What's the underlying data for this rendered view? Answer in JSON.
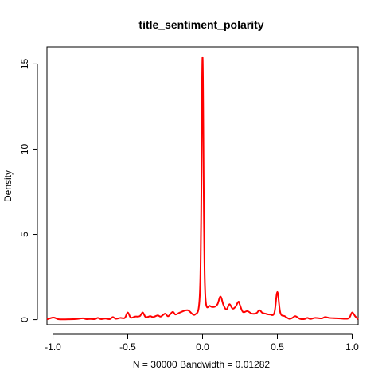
{
  "chart_data": {
    "type": "line",
    "title": "title_sentiment_polarity",
    "xlabel": "N = 30000   Bandwidth = 0.01282",
    "ylabel": "Density",
    "xlim": [
      -1.04,
      1.04
    ],
    "ylim": [
      -0.3,
      16.0
    ],
    "x_ticks": [
      -1.0,
      -0.5,
      0.0,
      0.5,
      1.0
    ],
    "x_tick_labels": [
      "-1.0",
      "-0.5",
      "0.0",
      "0.5",
      "1.0"
    ],
    "y_ticks": [
      0,
      5,
      10,
      15
    ],
    "y_tick_labels": [
      "0",
      "5",
      "10",
      "15"
    ],
    "grid": false,
    "series": [
      {
        "color": "#ff0000",
        "x": [
          -1.04,
          -1.0,
          -0.98,
          -0.96,
          -0.9,
          -0.85,
          -0.8,
          -0.78,
          -0.75,
          -0.72,
          -0.7,
          -0.68,
          -0.65,
          -0.62,
          -0.6,
          -0.58,
          -0.55,
          -0.52,
          -0.5,
          -0.48,
          -0.45,
          -0.42,
          -0.4,
          -0.38,
          -0.35,
          -0.33,
          -0.3,
          -0.28,
          -0.25,
          -0.23,
          -0.2,
          -0.18,
          -0.15,
          -0.1,
          -0.05,
          -0.02,
          -0.01,
          0.0,
          0.01,
          0.02,
          0.05,
          0.08,
          0.1,
          0.12,
          0.14,
          0.16,
          0.18,
          0.2,
          0.22,
          0.24,
          0.25,
          0.27,
          0.3,
          0.33,
          0.36,
          0.38,
          0.4,
          0.42,
          0.45,
          0.48,
          0.5,
          0.52,
          0.55,
          0.58,
          0.6,
          0.62,
          0.65,
          0.68,
          0.7,
          0.72,
          0.75,
          0.78,
          0.8,
          0.82,
          0.85,
          0.9,
          0.95,
          0.98,
          1.0,
          1.02,
          1.04
        ],
        "y": [
          0.02,
          0.12,
          0.08,
          0.02,
          0.02,
          0.03,
          0.08,
          0.03,
          0.04,
          0.03,
          0.1,
          0.03,
          0.06,
          0.03,
          0.15,
          0.05,
          0.1,
          0.1,
          0.42,
          0.12,
          0.18,
          0.2,
          0.42,
          0.15,
          0.2,
          0.15,
          0.25,
          0.18,
          0.35,
          0.2,
          0.45,
          0.3,
          0.42,
          0.55,
          0.3,
          1.2,
          5.5,
          15.4,
          5.5,
          1.2,
          0.8,
          0.75,
          0.9,
          1.35,
          0.85,
          0.6,
          0.9,
          0.65,
          0.75,
          1.05,
          0.85,
          0.45,
          0.5,
          0.35,
          0.38,
          0.55,
          0.4,
          0.35,
          0.3,
          0.4,
          1.62,
          0.4,
          0.2,
          0.05,
          0.1,
          0.2,
          0.05,
          0.03,
          0.1,
          0.04,
          0.1,
          0.08,
          0.08,
          0.15,
          0.1,
          0.08,
          0.05,
          0.1,
          0.42,
          0.2,
          0.02
        ]
      }
    ]
  }
}
